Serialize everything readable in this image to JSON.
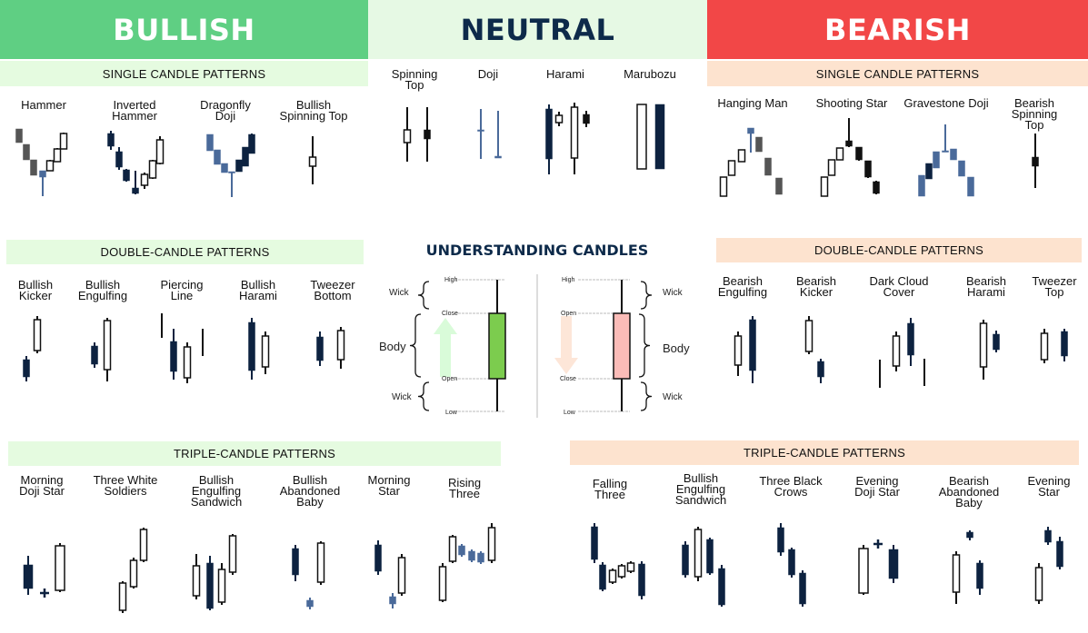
{
  "headers": {
    "bullish": "BULLISH",
    "neutral": "NEUTRAL",
    "bearish": "BEARISH"
  },
  "colors": {
    "bullish": "#5fcf83",
    "neutral": "#e6f9e4",
    "bearish": "#f24747",
    "bar_green": "#e5fbe0",
    "bar_peach": "#fde3cf",
    "navy": "#0d2240",
    "blue": "#4a6a9a",
    "gray": "#555555",
    "green_body": "#7ccc4e",
    "red_body": "#fbbcb8"
  },
  "bars": {
    "bull_single": "SINGLE CANDLE PATTERNS",
    "bear_single": "SINGLE CANDLE PATTERNS",
    "bull_double": "DOUBLE-CANDLE PATTERNS",
    "bear_double": "DOUBLE-CANDLE PATTERNS",
    "bull_triple": "TRIPLE-CANDLE PATTERNS",
    "bear_triple": "TRIPLE-CANDLE PATTERNS"
  },
  "patterns": {
    "bull_single": [
      "Hammer",
      "Inverted\nHammer",
      "Dragonfly\nDoji",
      "Bullish\nSpinning Top"
    ],
    "neutral": [
      "Spinning\nTop",
      "Doji",
      "Harami",
      "Marubozu"
    ],
    "bear_single": [
      "Hanging Man",
      "Shooting Star",
      "Gravestone Doji",
      "Bearish\nSpinning Top"
    ],
    "bull_double": [
      "Bullish\nKicker",
      "Bullish\nEngulfing",
      "Piercing\nLine",
      "Bullish\nHarami",
      "Tweezer\nBottom"
    ],
    "bear_double": [
      "Bearish\nEngulfing",
      "Bearish\nKicker",
      "Dark Cloud\nCover",
      "Bearish\nHarami",
      "Tweezer\nTop"
    ],
    "bull_triple": [
      "Morning\nDoji Star",
      "Three White\nSoldiers",
      "Bullish\nEngulfing\nSandwich",
      "Bullish\nAbandoned\nBaby",
      "Morning\nStar",
      "Rising\nThree"
    ],
    "bear_triple": [
      "Falling\nThree",
      "Bullish\nEngulfing\nSandwich",
      "Three Black\nCrows",
      "Evening\nDoji Star",
      "Bearish\nAbandoned\nBaby",
      "Evening\nStar"
    ]
  },
  "understanding": {
    "title": "UNDERSTANDING CANDLES",
    "bull": {
      "high": "High",
      "close": "Close",
      "open": "Open",
      "low": "Low",
      "wick_top": "Wick",
      "body": "Body",
      "wick_bottom": "Wick"
    },
    "bear": {
      "high": "High",
      "open": "Open",
      "close": "Close",
      "low": "Low",
      "wick_top": "Wick",
      "body": "Body",
      "wick_bottom": "Wick"
    }
  }
}
